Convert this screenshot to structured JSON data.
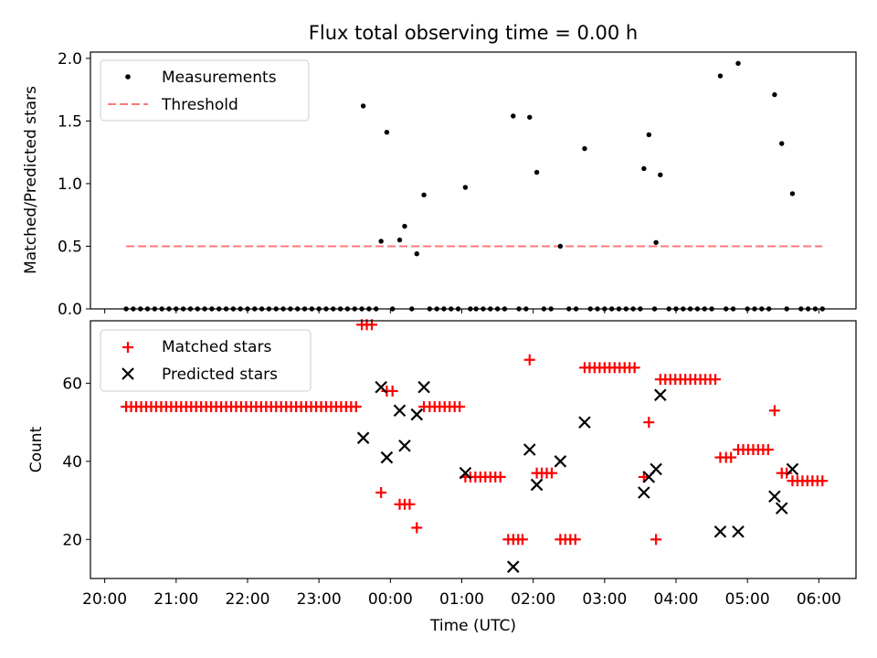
{
  "chart_data": [
    {
      "type": "scatter",
      "title": "Flux total observing time = 0.00 h",
      "ylabel": "Matched/Predicted stars",
      "ylim": [
        0,
        2.05
      ],
      "yticks": [
        "0.0",
        "0.5",
        "1.0",
        "1.5",
        "2.0"
      ],
      "xlim_hours": [
        19.8,
        30.52
      ],
      "legend_position": "upper-left",
      "series": [
        {
          "name": "Measurements",
          "marker": "dot",
          "color": "#000000",
          "x": [
            20.3,
            20.4,
            20.5,
            20.6,
            20.7,
            20.8,
            20.9,
            21.0,
            21.1,
            21.2,
            21.3,
            21.4,
            21.5,
            21.6,
            21.7,
            21.8,
            21.9,
            22.0,
            22.1,
            22.2,
            22.3,
            22.4,
            22.5,
            22.6,
            22.7,
            22.8,
            22.9,
            23.0,
            23.1,
            23.2,
            23.3,
            23.4,
            23.5,
            23.6,
            23.62,
            23.7,
            23.8,
            23.87,
            23.95,
            24.03,
            24.13,
            24.2,
            24.3,
            24.37,
            24.47,
            24.55,
            24.65,
            24.75,
            24.85,
            24.95,
            25.05,
            25.12,
            25.2,
            25.3,
            25.4,
            25.5,
            25.6,
            25.72,
            25.8,
            25.9,
            25.95,
            26.05,
            26.15,
            26.25,
            26.38,
            26.5,
            26.6,
            26.72,
            26.8,
            26.9,
            27.0,
            27.1,
            27.2,
            27.3,
            27.4,
            27.5,
            27.55,
            27.62,
            27.7,
            27.72,
            27.78,
            27.9,
            28.0,
            28.1,
            28.2,
            28.3,
            28.4,
            28.5,
            28.62,
            28.7,
            28.8,
            28.87,
            29.0,
            29.1,
            29.2,
            29.3,
            29.38,
            29.48,
            29.55,
            29.63,
            29.75,
            29.85,
            29.95,
            30.05
          ],
          "y": [
            0,
            0,
            0,
            0,
            0,
            0,
            0,
            0,
            0,
            0,
            0,
            0,
            0,
            0,
            0,
            0,
            0,
            0,
            0,
            0,
            0,
            0,
            0,
            0,
            0,
            0,
            0,
            0,
            0,
            0,
            0,
            0,
            0,
            0,
            1.62,
            0,
            0,
            0.54,
            1.41,
            0,
            0.55,
            0.66,
            0,
            0.44,
            0.91,
            0,
            0,
            0,
            0,
            0,
            0.97,
            0,
            0,
            0,
            0,
            0,
            0,
            1.54,
            0,
            0,
            1.53,
            1.09,
            0,
            0,
            0.5,
            0,
            0,
            1.28,
            0,
            0,
            0,
            0,
            0,
            0,
            0,
            0,
            1.12,
            1.39,
            0,
            0.53,
            1.07,
            0,
            0,
            0,
            0,
            0,
            0,
            0,
            1.86,
            0,
            0,
            1.96,
            0,
            0,
            0,
            0,
            1.71,
            1.32,
            0,
            0.92,
            0,
            0,
            0,
            0
          ]
        },
        {
          "name": "Threshold",
          "marker": "dashed-line",
          "color": "#ff7777",
          "x": [
            20.3,
            30.05
          ],
          "y": [
            0.5,
            0.5
          ]
        }
      ]
    },
    {
      "type": "scatter",
      "ylabel": "Count",
      "xlabel": "Time (UTC)",
      "ylim": [
        10,
        76
      ],
      "yticks": [
        "20",
        "40",
        "60"
      ],
      "xlim_hours": [
        19.8,
        30.52
      ],
      "xticks": [
        "20:00",
        "21:00",
        "22:00",
        "23:00",
        "00:00",
        "01:00",
        "02:00",
        "03:00",
        "04:00",
        "05:00",
        "06:00"
      ],
      "legend_position": "upper-left",
      "series": [
        {
          "name": "Matched stars",
          "marker": "plus",
          "color": "#ff0000",
          "x": [
            20.3,
            20.37,
            20.44,
            20.51,
            20.58,
            20.65,
            20.72,
            20.79,
            20.86,
            20.93,
            21.0,
            21.07,
            21.14,
            21.21,
            21.28,
            21.35,
            21.42,
            21.49,
            21.56,
            21.63,
            21.7,
            21.77,
            21.84,
            21.91,
            21.98,
            22.05,
            22.12,
            22.19,
            22.26,
            22.33,
            22.4,
            22.47,
            22.54,
            22.61,
            22.68,
            22.75,
            22.82,
            22.89,
            22.96,
            23.03,
            23.1,
            23.17,
            23.24,
            23.31,
            23.38,
            23.45,
            23.52,
            23.6,
            23.67,
            23.74,
            23.87,
            23.95,
            24.03,
            24.13,
            24.2,
            24.27,
            24.37,
            24.47,
            24.55,
            24.62,
            24.69,
            24.76,
            24.83,
            24.9,
            24.97,
            25.05,
            25.12,
            25.19,
            25.26,
            25.33,
            25.4,
            25.47,
            25.54,
            25.65,
            25.72,
            25.79,
            25.85,
            25.95,
            26.05,
            26.12,
            26.19,
            26.26,
            26.38,
            26.45,
            26.52,
            26.59,
            26.72,
            26.79,
            26.86,
            26.93,
            27.0,
            27.07,
            27.14,
            27.21,
            27.28,
            27.35,
            27.42,
            27.55,
            27.62,
            27.72,
            27.78,
            27.85,
            27.92,
            27.99,
            28.06,
            28.13,
            28.2,
            28.27,
            28.34,
            28.41,
            28.48,
            28.55,
            28.62,
            28.7,
            28.77,
            28.87,
            28.94,
            29.01,
            29.08,
            29.15,
            29.22,
            29.29,
            29.38,
            29.48,
            29.55,
            29.63,
            29.7,
            29.77,
            29.84,
            29.91,
            29.98,
            30.05
          ],
          "y": [
            54,
            54,
            54,
            54,
            54,
            54,
            54,
            54,
            54,
            54,
            54,
            54,
            54,
            54,
            54,
            54,
            54,
            54,
            54,
            54,
            54,
            54,
            54,
            54,
            54,
            54,
            54,
            54,
            54,
            54,
            54,
            54,
            54,
            54,
            54,
            54,
            54,
            54,
            54,
            54,
            54,
            54,
            54,
            54,
            54,
            54,
            54,
            75,
            75,
            75,
            32,
            58,
            58,
            29,
            29,
            29,
            23,
            54,
            54,
            54,
            54,
            54,
            54,
            54,
            54,
            36,
            36,
            36,
            36,
            36,
            36,
            36,
            36,
            20,
            20,
            20,
            20,
            66,
            37,
            37,
            37,
            37,
            20,
            20,
            20,
            20,
            64,
            64,
            64,
            64,
            64,
            64,
            64,
            64,
            64,
            64,
            64,
            36,
            50,
            20,
            61,
            61,
            61,
            61,
            61,
            61,
            61,
            61,
            61,
            61,
            61,
            61,
            41,
            41,
            41,
            43,
            43,
            43,
            43,
            43,
            43,
            43,
            53,
            37,
            37,
            35,
            35,
            35,
            35,
            35,
            35,
            35
          ]
        },
        {
          "name": "Predicted stars",
          "marker": "x",
          "color": "#000000",
          "x": [
            23.62,
            23.87,
            23.95,
            24.13,
            24.2,
            24.37,
            24.47,
            25.05,
            25.72,
            25.95,
            26.05,
            26.38,
            26.72,
            27.55,
            27.62,
            27.72,
            27.78,
            28.62,
            28.87,
            29.38,
            29.48,
            29.63
          ],
          "y": [
            46,
            59,
            41,
            53,
            44,
            52,
            59,
            37,
            13,
            43,
            34,
            40,
            50,
            32,
            36,
            38,
            57,
            22,
            22,
            31,
            28,
            38
          ]
        }
      ]
    }
  ]
}
